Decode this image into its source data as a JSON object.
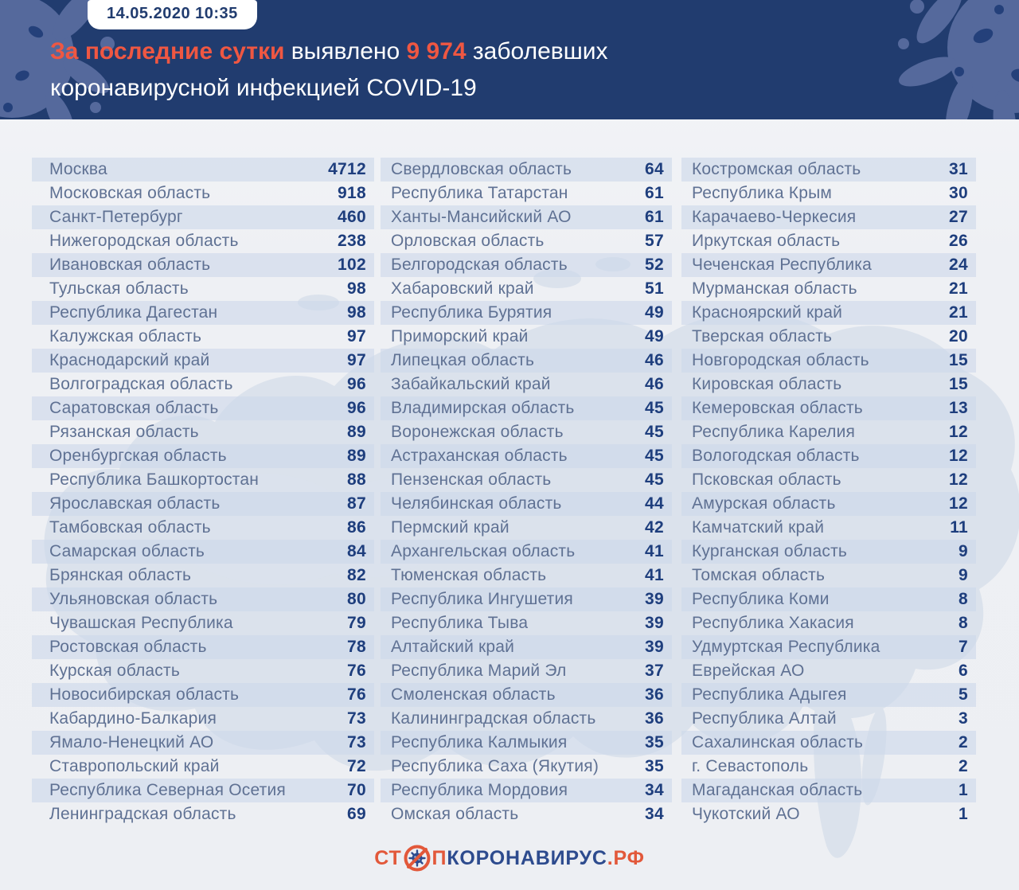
{
  "header": {
    "badge": "14.05.2020 10:35",
    "headline": {
      "segments": [
        {
          "text": "За последние сутки",
          "style": "accent"
        },
        {
          "text": " выявлено ",
          "style": "normal"
        },
        {
          "text": "9 974",
          "style": "accent"
        },
        {
          "text": " заболевших",
          "style": "normal"
        }
      ],
      "line2": "коронавирусной инфекцией COVID-19"
    }
  },
  "colors": {
    "header_bg": "#213c6f",
    "accent_orange": "#ef5742",
    "region_label": "#5f7193",
    "value_navy": "#1e3e7d",
    "stripe": "#cdd8ea",
    "map_silhouette": "#ccd7e6",
    "logo_orange": "#e2583a",
    "logo_blue": "#2d4b8e"
  },
  "chart_data": {
    "type": "table",
    "title": "За последние сутки выявлено 9 974 заболевших коронавирусной инфекцией COVID-19",
    "timestamp": "14.05.2020 10:35",
    "columns": [
      {
        "rows": [
          {
            "region": "Москва",
            "value": 4712
          },
          {
            "region": "Московская область",
            "value": 918
          },
          {
            "region": "Санкт-Петербург",
            "value": 460
          },
          {
            "region": "Нижегородская область",
            "value": 238
          },
          {
            "region": "Ивановская область",
            "value": 102
          },
          {
            "region": "Тульская область",
            "value": 98
          },
          {
            "region": "Республика Дагестан",
            "value": 98
          },
          {
            "region": "Калужская область",
            "value": 97
          },
          {
            "region": "Краснодарский край",
            "value": 97
          },
          {
            "region": "Волгоградская область",
            "value": 96
          },
          {
            "region": "Саратовская область",
            "value": 96
          },
          {
            "region": "Рязанская область",
            "value": 89
          },
          {
            "region": "Оренбургская область",
            "value": 89
          },
          {
            "region": "Республика Башкортостан",
            "value": 88
          },
          {
            "region": "Ярославская область",
            "value": 87
          },
          {
            "region": "Тамбовская область",
            "value": 86
          },
          {
            "region": "Самарская область",
            "value": 84
          },
          {
            "region": "Брянская область",
            "value": 82
          },
          {
            "region": "Ульяновская область",
            "value": 80
          },
          {
            "region": "Чувашская Республика",
            "value": 79
          },
          {
            "region": "Ростовская область",
            "value": 78
          },
          {
            "region": "Курская область",
            "value": 76
          },
          {
            "region": "Новосибирская область",
            "value": 76
          },
          {
            "region": "Кабардино-Балкария",
            "value": 73
          },
          {
            "region": "Ямало-Ненецкий АО",
            "value": 73
          },
          {
            "region": "Ставропольский край",
            "value": 72
          },
          {
            "region": "Республика Северная Осетия",
            "value": 70
          },
          {
            "region": "Ленинградская область",
            "value": 69
          }
        ]
      },
      {
        "rows": [
          {
            "region": "Свердловская область",
            "value": 64
          },
          {
            "region": "Республика Татарстан",
            "value": 61
          },
          {
            "region": "Ханты-Мансийский АО",
            "value": 61
          },
          {
            "region": "Орловская область",
            "value": 57
          },
          {
            "region": "Белгородская область",
            "value": 52
          },
          {
            "region": "Хабаровский край",
            "value": 51
          },
          {
            "region": "Республика Бурятия",
            "value": 49
          },
          {
            "region": "Приморский край",
            "value": 49
          },
          {
            "region": "Липецкая область",
            "value": 46
          },
          {
            "region": "Забайкальский край",
            "value": 46
          },
          {
            "region": "Владимирская область",
            "value": 45
          },
          {
            "region": "Воронежская область",
            "value": 45
          },
          {
            "region": "Астраханская область",
            "value": 45
          },
          {
            "region": "Пензенская область",
            "value": 45
          },
          {
            "region": "Челябинская область",
            "value": 44
          },
          {
            "region": "Пермский край",
            "value": 42
          },
          {
            "region": "Архангельская область",
            "value": 41
          },
          {
            "region": "Тюменская область",
            "value": 41
          },
          {
            "region": "Республика Ингушетия",
            "value": 39
          },
          {
            "region": "Республика Тыва",
            "value": 39
          },
          {
            "region": "Алтайский край",
            "value": 39
          },
          {
            "region": "Республика Марий Эл",
            "value": 37
          },
          {
            "region": "Смоленская область",
            "value": 36
          },
          {
            "region": "Калининградская область",
            "value": 36
          },
          {
            "region": "Республика Калмыкия",
            "value": 35
          },
          {
            "region": "Республика Саха (Якутия)",
            "value": 35
          },
          {
            "region": "Республика Мордовия",
            "value": 34
          },
          {
            "region": "Омская область",
            "value": 34
          }
        ]
      },
      {
        "rows": [
          {
            "region": "Костромская область",
            "value": 31
          },
          {
            "region": "Республика Крым",
            "value": 30
          },
          {
            "region": "Карачаево-Черкесия",
            "value": 27
          },
          {
            "region": "Иркутская область",
            "value": 26
          },
          {
            "region": "Чеченская Республика",
            "value": 24
          },
          {
            "region": "Мурманская область",
            "value": 21
          },
          {
            "region": "Красноярский край",
            "value": 21
          },
          {
            "region": "Тверская область",
            "value": 20
          },
          {
            "region": "Новгородская область",
            "value": 15
          },
          {
            "region": "Кировская область",
            "value": 15
          },
          {
            "region": "Кемеровская область",
            "value": 13
          },
          {
            "region": "Республика Карелия",
            "value": 12
          },
          {
            "region": "Вологодская область",
            "value": 12
          },
          {
            "region": "Псковская область",
            "value": 12
          },
          {
            "region": "Амурская область",
            "value": 12
          },
          {
            "region": "Камчатский край",
            "value": 11
          },
          {
            "region": "Курганская область",
            "value": 9
          },
          {
            "region": "Томская область",
            "value": 9
          },
          {
            "region": "Республика Коми",
            "value": 8
          },
          {
            "region": "Республика Хакасия",
            "value": 8
          },
          {
            "region": "Удмуртская Республика",
            "value": 7
          },
          {
            "region": "Еврейская АО",
            "value": 6
          },
          {
            "region": "Республика Адыгея",
            "value": 5
          },
          {
            "region": "Республика Алтай",
            "value": 3
          },
          {
            "region": "Сахалинская область",
            "value": 2
          },
          {
            "region": "г. Севастополь",
            "value": 2
          },
          {
            "region": "Магаданская область",
            "value": 1
          },
          {
            "region": "Чукотский АО",
            "value": 1
          }
        ]
      }
    ]
  },
  "footer": {
    "logo": {
      "st": "СТ",
      "p": "П",
      "mid": "КОРОНАВИРУС",
      "rf": ".РФ"
    }
  }
}
